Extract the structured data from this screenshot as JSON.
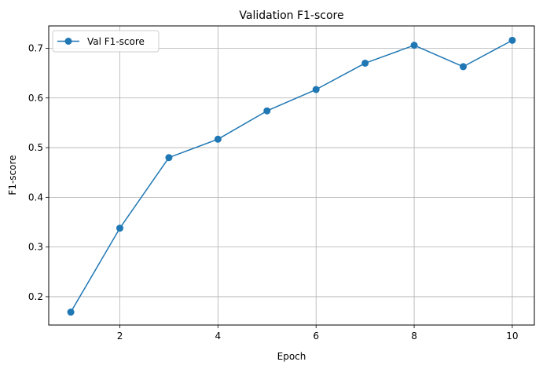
{
  "chart_data": {
    "type": "line",
    "title": "Validation F1-score",
    "xlabel": "Epoch",
    "ylabel": "F1-score",
    "xlim": [
      0.55,
      10.45
    ],
    "ylim": [
      0.143,
      0.745
    ],
    "xticks": [
      2,
      4,
      6,
      8,
      10
    ],
    "yticks": [
      0.2,
      0.3,
      0.4,
      0.5,
      0.6,
      0.7
    ],
    "xtick_labels": [
      "2",
      "4",
      "6",
      "8",
      "10"
    ],
    "ytick_labels": [
      "0.2",
      "0.3",
      "0.4",
      "0.5",
      "0.6",
      "0.7"
    ],
    "grid": true,
    "legend_position": "top-left",
    "series": [
      {
        "name": "Val F1-score",
        "color": "#1f77b4",
        "marker": "circle",
        "x": [
          1,
          2,
          3,
          4,
          5,
          6,
          7,
          8,
          9,
          10
        ],
        "y": [
          0.169,
          0.338,
          0.48,
          0.517,
          0.574,
          0.617,
          0.67,
          0.706,
          0.663,
          0.716
        ]
      }
    ]
  }
}
